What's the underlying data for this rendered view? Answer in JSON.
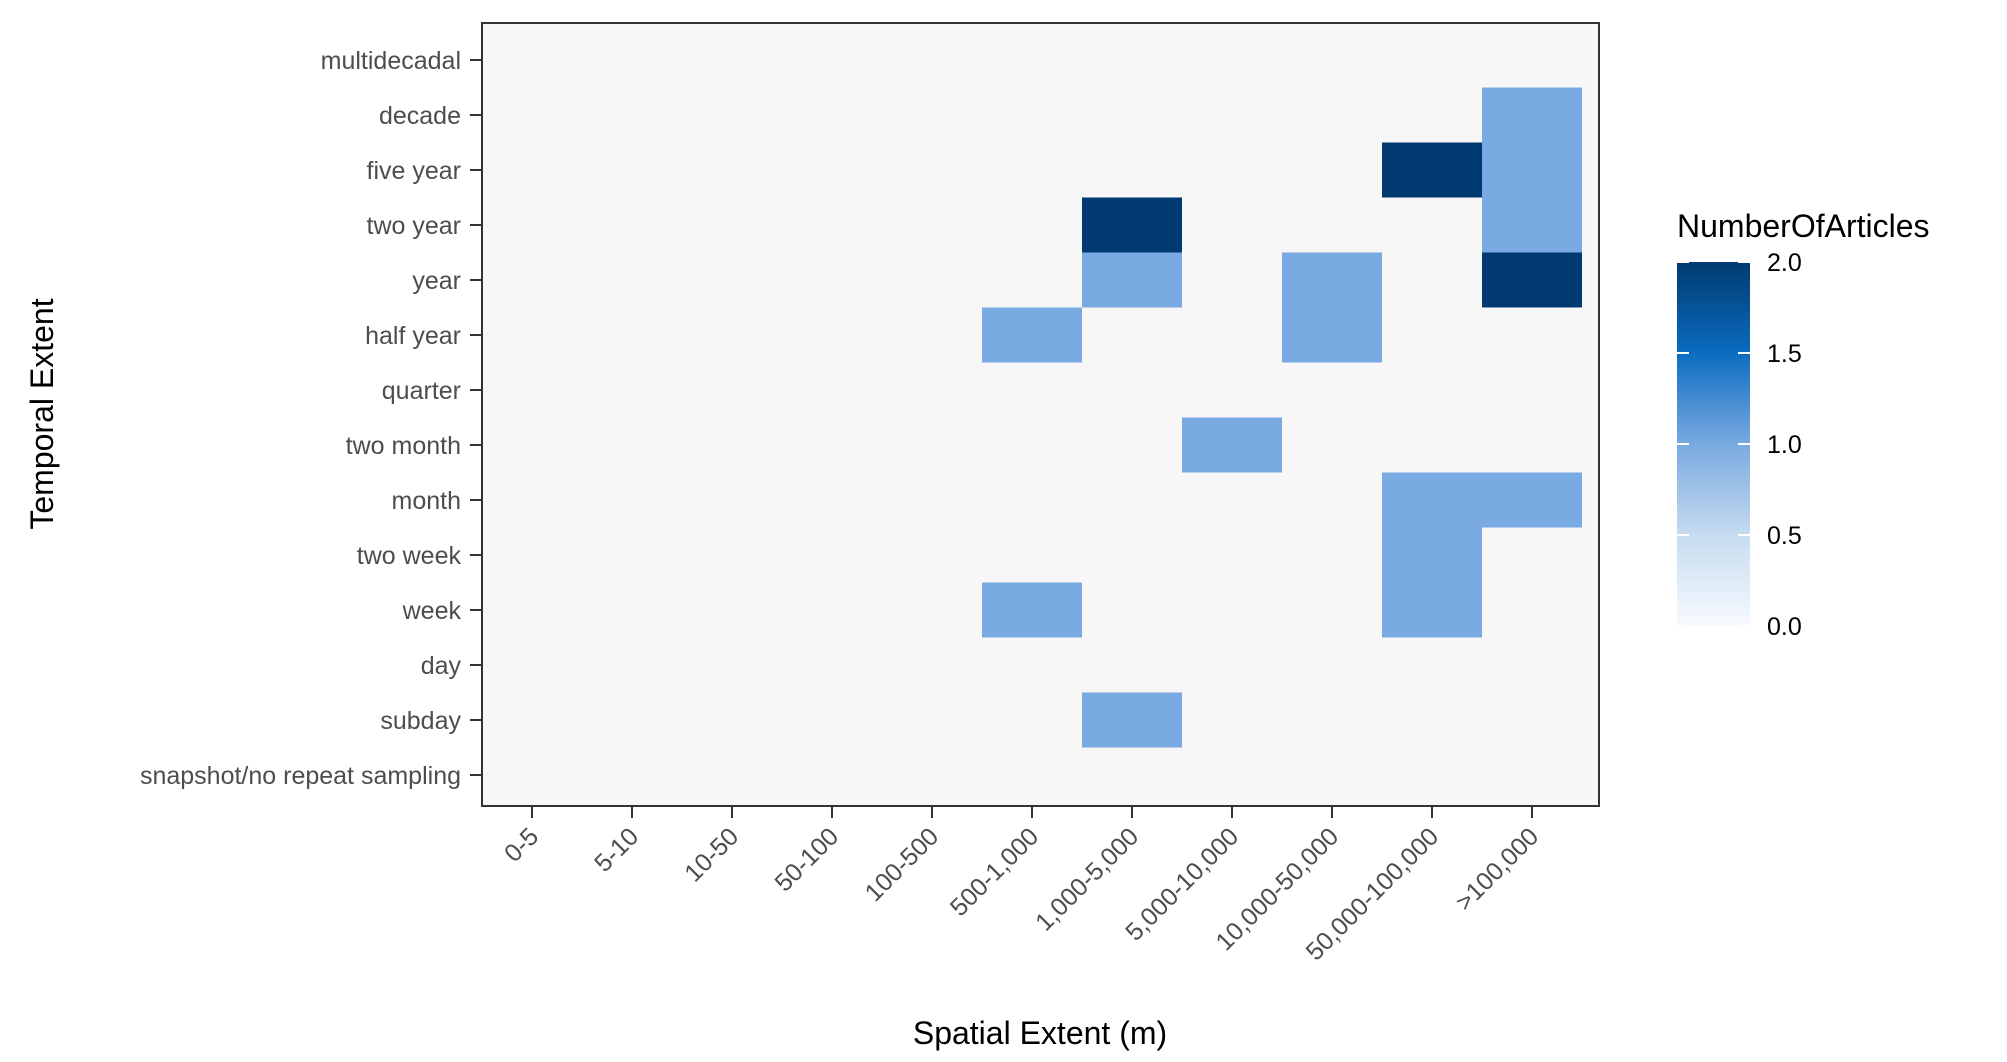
{
  "chart_data": {
    "type": "heatmap",
    "title": "",
    "xlabel": "Spatial Extent (m)",
    "ylabel": "Temporal Extent",
    "x_categories": [
      "0-5",
      "5-10",
      "10-50",
      "50-100",
      "100-500",
      "500-1,000",
      "1,000-5,000",
      "5,000-10,000",
      "10,000-50,000",
      "50,000-100,000",
      ">100,000"
    ],
    "y_categories": [
      "snapshot/no repeat sampling",
      "subday",
      "day",
      "week",
      "two week",
      "month",
      "two month",
      "quarter",
      "half year",
      "year",
      "two year",
      "five year",
      "decade",
      "multidecadal"
    ],
    "cells": [
      {
        "x": "500-1,000",
        "y": "half year",
        "value": 1
      },
      {
        "x": "500-1,000",
        "y": "week",
        "value": 1
      },
      {
        "x": "1,000-5,000",
        "y": "two year",
        "value": 2
      },
      {
        "x": "1,000-5,000",
        "y": "year",
        "value": 1
      },
      {
        "x": "1,000-5,000",
        "y": "subday",
        "value": 1
      },
      {
        "x": "5,000-10,000",
        "y": "two month",
        "value": 1
      },
      {
        "x": "10,000-50,000",
        "y": "year",
        "value": 1
      },
      {
        "x": "10,000-50,000",
        "y": "half year",
        "value": 1
      },
      {
        "x": "50,000-100,000",
        "y": "five year",
        "value": 2
      },
      {
        "x": "50,000-100,000",
        "y": "month",
        "value": 1
      },
      {
        "x": "50,000-100,000",
        "y": "two week",
        "value": 1
      },
      {
        "x": "50,000-100,000",
        "y": "week",
        "value": 1
      },
      {
        "x": ">100,000",
        "y": "decade",
        "value": 1
      },
      {
        "x": ">100,000",
        "y": "five year",
        "value": 1
      },
      {
        "x": ">100,000",
        "y": "two year",
        "value": 1
      },
      {
        "x": ">100,000",
        "y": "year",
        "value": 2
      },
      {
        "x": ">100,000",
        "y": "month",
        "value": 1
      }
    ],
    "legend": {
      "title": "NumberOfArticles",
      "placement": "right",
      "range": [
        0,
        2
      ],
      "ticks": [
        "0.0",
        "0.5",
        "1.0",
        "1.5",
        "2.0"
      ],
      "colors": [
        "#f7fbff",
        "#c6dbef",
        "#79aae1",
        "#0b6cbf",
        "#003a70"
      ]
    },
    "background_color": "#f7f7f7",
    "grid": false
  }
}
